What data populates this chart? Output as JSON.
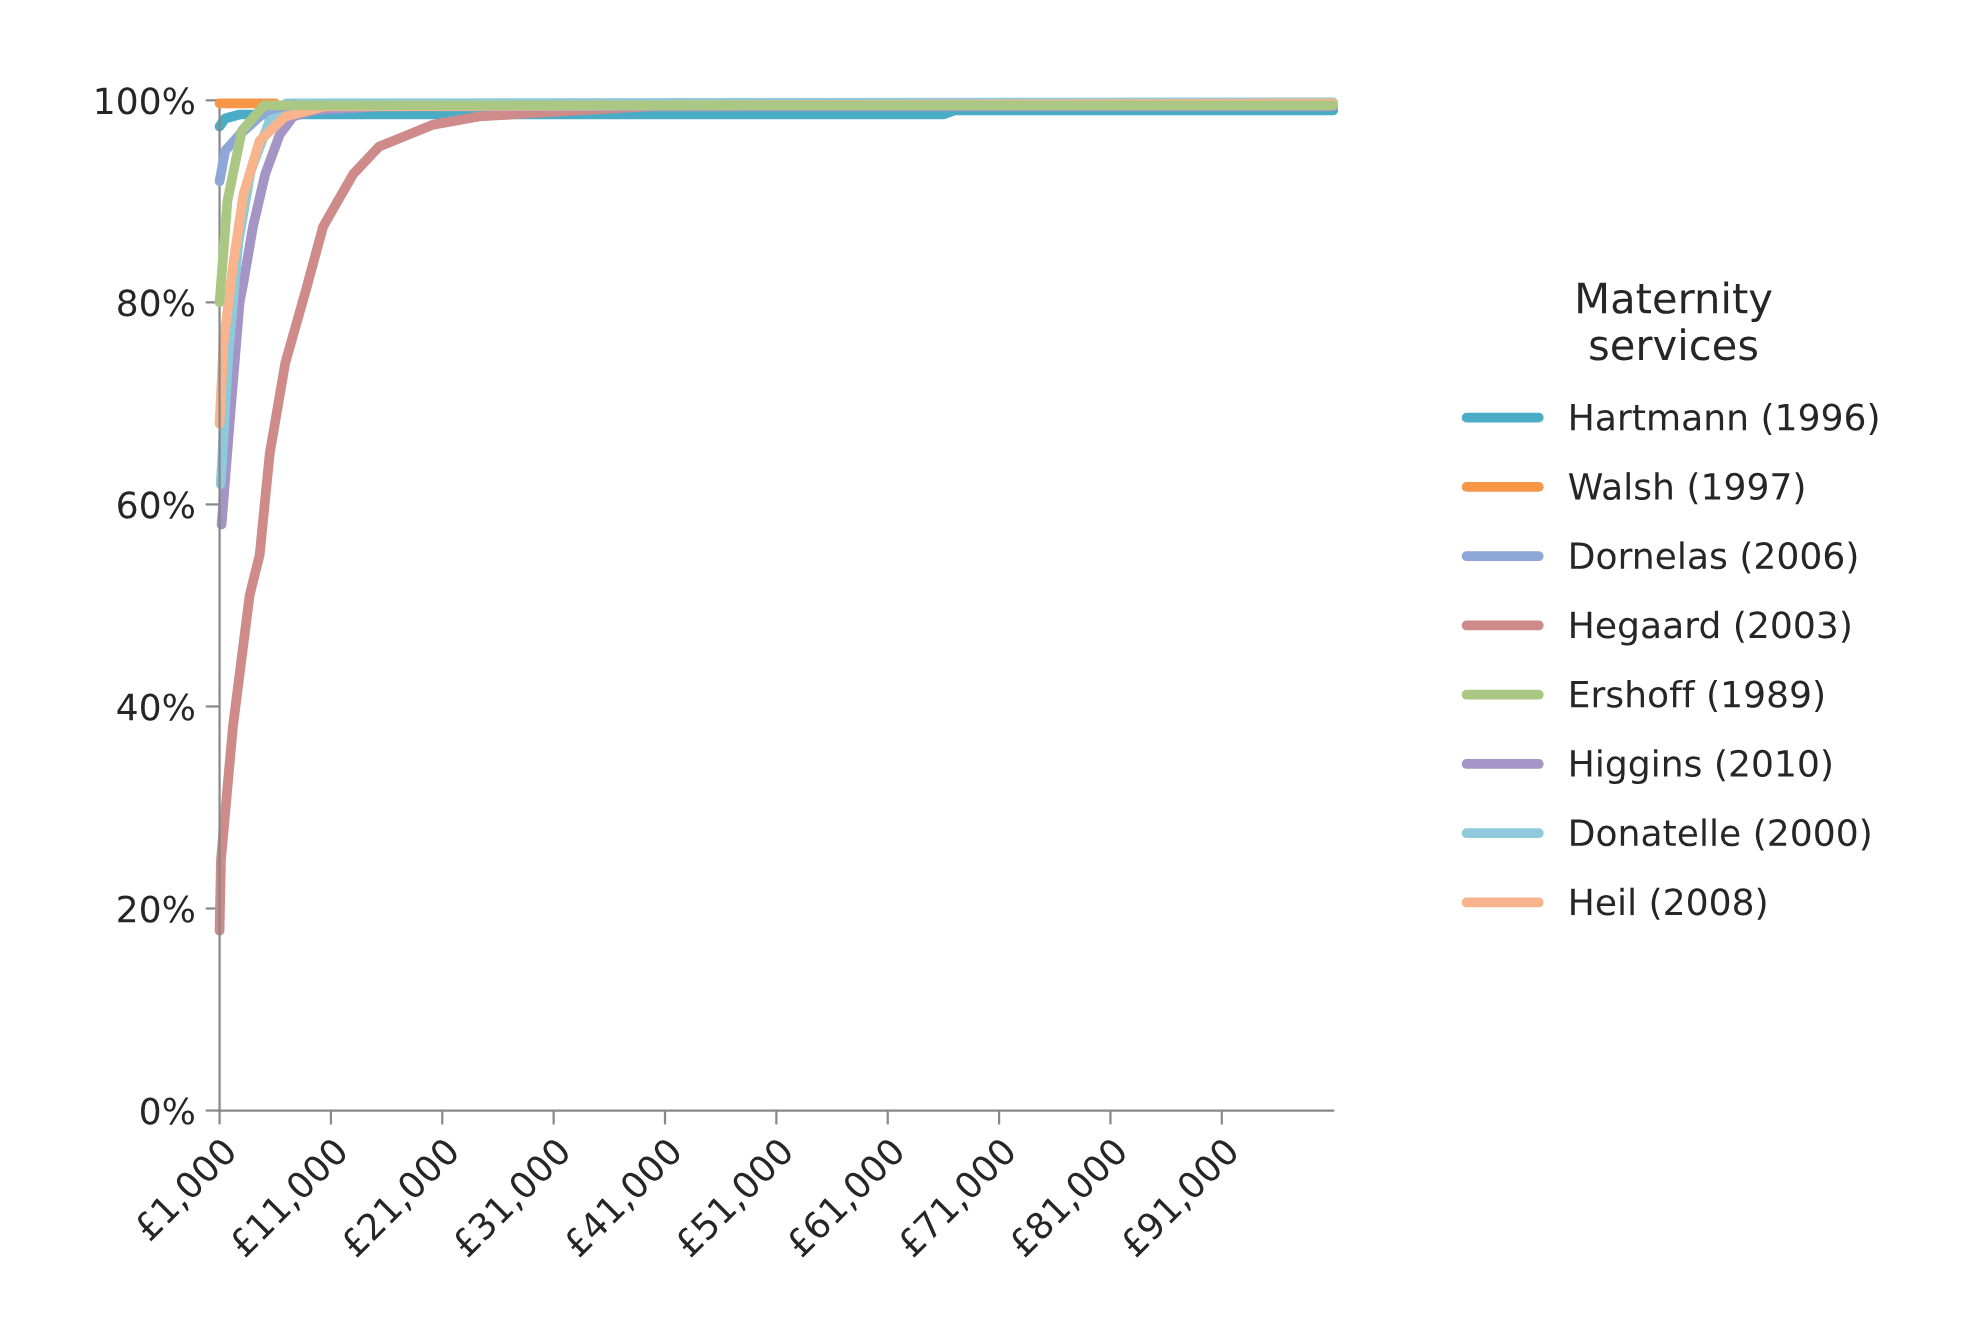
{
  "chart_data": {
    "type": "line",
    "legend_title": "Maternity services",
    "legend": "right",
    "grid": false,
    "marker": "none",
    "line_style": "solid",
    "xlim": [
      1000,
      101000
    ],
    "ylim": [
      0,
      100
    ],
    "xticks": [
      {
        "value": 1000,
        "label": "£1,000"
      },
      {
        "value": 11000,
        "label": "£11,000"
      },
      {
        "value": 21000,
        "label": "£21,000"
      },
      {
        "value": 31000,
        "label": "£31,000"
      },
      {
        "value": 41000,
        "label": "£41,000"
      },
      {
        "value": 51000,
        "label": "£51,000"
      },
      {
        "value": 61000,
        "label": "£61,000"
      },
      {
        "value": 71000,
        "label": "£71,000"
      },
      {
        "value": 81000,
        "label": "£81,000"
      },
      {
        "value": 91000,
        "label": "£91,000"
      }
    ],
    "yticks": [
      {
        "value": 0,
        "label": "0%"
      },
      {
        "value": 20,
        "label": "20%"
      },
      {
        "value": 40,
        "label": "40%"
      },
      {
        "value": 60,
        "label": "60%"
      },
      {
        "value": 80,
        "label": "80%"
      },
      {
        "value": 100,
        "label": "100%"
      }
    ],
    "series": [
      {
        "name": "Hartmann (1996)",
        "color": "#4bacc6",
        "x": [
          1000,
          1500,
          2800,
          66000,
          67000,
          101000
        ],
        "values": [
          97.4,
          98.2,
          98.6,
          98.6,
          99,
          99
        ]
      },
      {
        "name": "Walsh (1997)",
        "color": "#f79646",
        "x": [
          1000,
          6000
        ],
        "values": [
          99.7,
          99.7
        ]
      },
      {
        "name": "Dornelas (2006)",
        "color": "#8ea7d6",
        "x": [
          1000,
          1500,
          2800,
          5200,
          7600
        ],
        "values": [
          92,
          95,
          96.6,
          99,
          99.6
        ]
      },
      {
        "name": "Hegaard (2003)",
        "color": "#cf8a8a",
        "x": [
          1000,
          1125,
          2200,
          3700,
          4600,
          5500,
          6900,
          8700,
          10300,
          13000,
          15300,
          20200,
          24300,
          33200,
          41000,
          101000
        ],
        "values": [
          17.8,
          24.8,
          38,
          51,
          55,
          65,
          74,
          81,
          87.5,
          92.7,
          95.4,
          97.6,
          98.4,
          99,
          99.5,
          99.5
        ]
      },
      {
        "name": "Ershoff (1989)",
        "color": "#aac884",
        "x": [
          1000,
          1700,
          3000,
          5000,
          101000
        ],
        "values": [
          80,
          90,
          97,
          99.5,
          99.5
        ]
      },
      {
        "name": "Higgins (2010)",
        "color": "#a594c6",
        "x": [
          1180,
          1900,
          2800,
          3150,
          4000,
          5100,
          6400,
          7600,
          9400,
          15300,
          101000
        ],
        "values": [
          58,
          68,
          80,
          82,
          87.5,
          92.7,
          96.6,
          98.4,
          99,
          99.4,
          99.4
        ]
      },
      {
        "name": "Donatelle (2000)",
        "color": "#8ecadc",
        "x": [
          1100,
          1800,
          2700,
          3800,
          5500,
          7000,
          101000
        ],
        "values": [
          62,
          75,
          86,
          93,
          98,
          99.7,
          99.8
        ]
      },
      {
        "name": "Heil (2008)",
        "color": "#f8b48c",
        "x": [
          1000,
          1360,
          2250,
          3150,
          4600,
          6900,
          10500,
          101000
        ],
        "values": [
          68,
          76,
          84,
          90.7,
          96,
          98.4,
          99.4,
          99.7
        ]
      }
    ]
  }
}
